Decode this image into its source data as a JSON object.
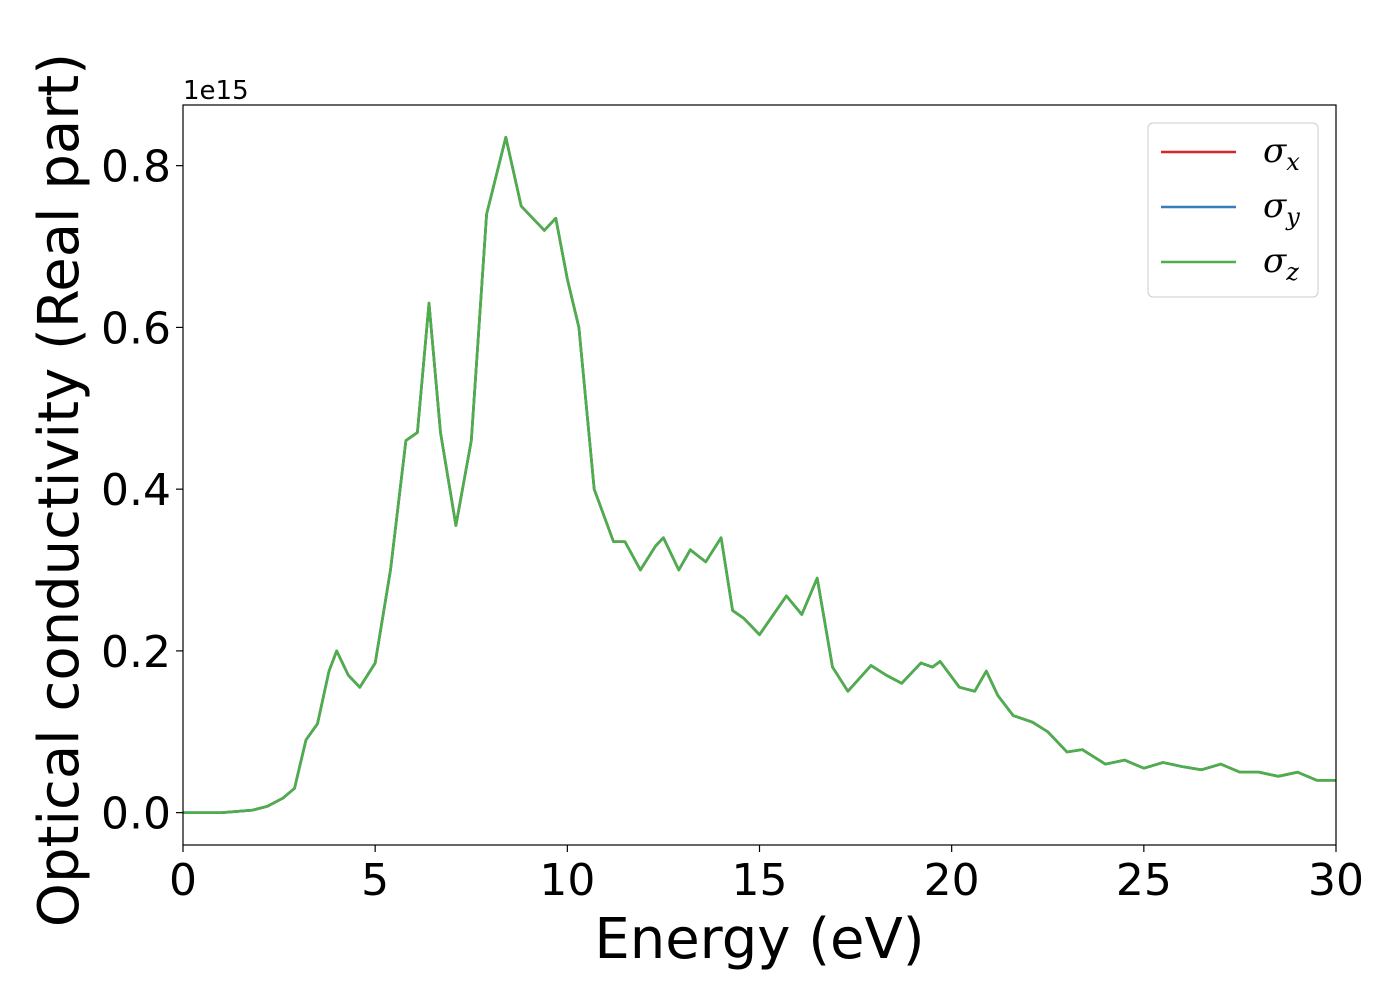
{
  "chart_data": {
    "type": "line",
    "xlabel": "Energy (eV)",
    "ylabel": "Optical conductivity (Real part)",
    "y_offset_text": "1e15",
    "xlim": [
      0,
      30
    ],
    "ylim": [
      -0.04,
      0.875
    ],
    "x_ticks": [
      0,
      5,
      10,
      15,
      20,
      25,
      30
    ],
    "x_tick_labels": [
      "0",
      "5",
      "10",
      "15",
      "20",
      "25",
      "30"
    ],
    "y_ticks": [
      0.0,
      0.2,
      0.4,
      0.6,
      0.8
    ],
    "y_tick_labels": [
      "0.0",
      "0.2",
      "0.4",
      "0.6",
      "0.8"
    ],
    "grid": false,
    "legend_position": "top-right",
    "x": [
      0,
      1,
      1.8,
      2.2,
      2.6,
      2.9,
      3.2,
      3.5,
      3.8,
      4.0,
      4.3,
      4.6,
      5.0,
      5.4,
      5.8,
      6.1,
      6.4,
      6.7,
      7.1,
      7.5,
      7.9,
      8.4,
      8.8,
      9.4,
      9.7,
      10.0,
      10.3,
      10.7,
      11.2,
      11.5,
      11.9,
      12.3,
      12.5,
      12.9,
      13.2,
      13.6,
      14.0,
      14.3,
      14.6,
      15.0,
      15.7,
      16.1,
      16.5,
      16.9,
      17.3,
      17.9,
      18.3,
      18.7,
      19.2,
      19.5,
      19.7,
      20.2,
      20.6,
      20.9,
      21.2,
      21.6,
      22.1,
      22.5,
      23.0,
      23.4,
      24.0,
      24.5,
      25.0,
      25.5,
      26.0,
      26.5,
      27.0,
      27.5,
      28.0,
      28.5,
      29.0,
      29.5,
      30.0
    ],
    "series": [
      {
        "name": "x",
        "color": "#d62728",
        "values": [
          0.0,
          0.0,
          0.003,
          0.008,
          0.018,
          0.03,
          0.09,
          0.11,
          0.175,
          0.2,
          0.17,
          0.155,
          0.185,
          0.3,
          0.46,
          0.47,
          0.63,
          0.47,
          0.355,
          0.46,
          0.74,
          0.835,
          0.75,
          0.72,
          0.735,
          0.66,
          0.6,
          0.4,
          0.335,
          0.335,
          0.3,
          0.33,
          0.34,
          0.3,
          0.325,
          0.31,
          0.34,
          0.25,
          0.24,
          0.22,
          0.268,
          0.245,
          0.29,
          0.18,
          0.15,
          0.182,
          0.17,
          0.16,
          0.185,
          0.18,
          0.187,
          0.155,
          0.15,
          0.175,
          0.145,
          0.12,
          0.112,
          0.1,
          0.075,
          0.078,
          0.06,
          0.065,
          0.055,
          0.062,
          0.057,
          0.053,
          0.06,
          0.05,
          0.05,
          0.045,
          0.05,
          0.04,
          0.04
        ]
      },
      {
        "name": "y",
        "color": "#377eb8",
        "values": [
          0.0,
          0.0,
          0.003,
          0.008,
          0.018,
          0.03,
          0.09,
          0.11,
          0.175,
          0.2,
          0.17,
          0.155,
          0.185,
          0.3,
          0.46,
          0.47,
          0.63,
          0.47,
          0.355,
          0.46,
          0.74,
          0.835,
          0.75,
          0.72,
          0.735,
          0.66,
          0.6,
          0.4,
          0.335,
          0.335,
          0.3,
          0.33,
          0.34,
          0.3,
          0.325,
          0.31,
          0.34,
          0.25,
          0.24,
          0.22,
          0.268,
          0.245,
          0.29,
          0.18,
          0.15,
          0.182,
          0.17,
          0.16,
          0.185,
          0.18,
          0.187,
          0.155,
          0.15,
          0.175,
          0.145,
          0.12,
          0.112,
          0.1,
          0.075,
          0.078,
          0.06,
          0.065,
          0.055,
          0.062,
          0.057,
          0.053,
          0.06,
          0.05,
          0.05,
          0.045,
          0.05,
          0.04,
          0.04
        ]
      },
      {
        "name": "z",
        "color": "#4daf4a",
        "values": [
          0.0,
          0.0,
          0.003,
          0.008,
          0.018,
          0.03,
          0.09,
          0.11,
          0.175,
          0.2,
          0.17,
          0.155,
          0.185,
          0.3,
          0.46,
          0.47,
          0.63,
          0.47,
          0.355,
          0.46,
          0.74,
          0.835,
          0.75,
          0.72,
          0.735,
          0.66,
          0.6,
          0.4,
          0.335,
          0.335,
          0.3,
          0.33,
          0.34,
          0.3,
          0.325,
          0.31,
          0.34,
          0.25,
          0.24,
          0.22,
          0.268,
          0.245,
          0.29,
          0.18,
          0.15,
          0.182,
          0.17,
          0.16,
          0.185,
          0.18,
          0.187,
          0.155,
          0.15,
          0.175,
          0.145,
          0.12,
          0.112,
          0.1,
          0.075,
          0.078,
          0.06,
          0.065,
          0.055,
          0.062,
          0.057,
          0.053,
          0.06,
          0.05,
          0.05,
          0.045,
          0.05,
          0.04,
          0.04
        ]
      }
    ],
    "legend": [
      {
        "symbol": "σ",
        "subscript": "x",
        "color": "#d62728"
      },
      {
        "symbol": "σ",
        "subscript": "y",
        "color": "#377eb8"
      },
      {
        "symbol": "σ",
        "subscript": "z",
        "color": "#4daf4a"
      }
    ]
  }
}
